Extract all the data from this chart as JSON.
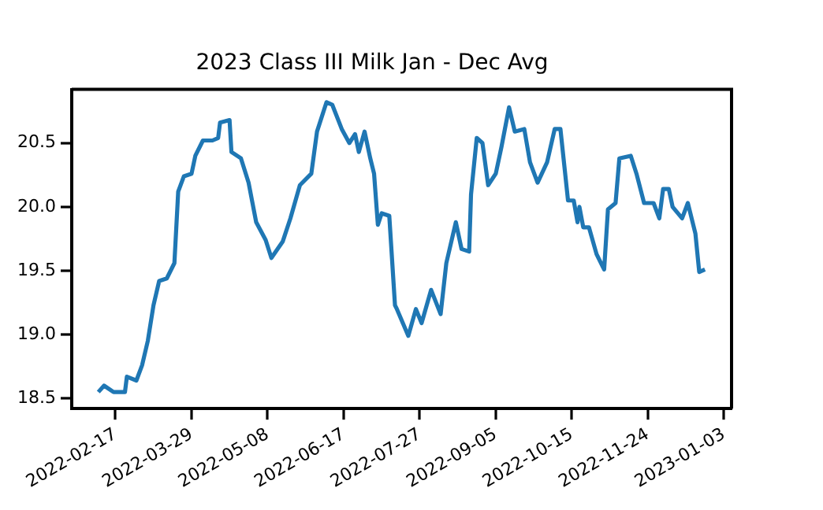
{
  "chart_data": {
    "type": "line",
    "title": "2023 Class III Milk Jan - Dec Avg",
    "x": [
      "2022-02-08",
      "2022-02-11",
      "2022-02-16",
      "2022-02-22",
      "2022-02-23",
      "2022-02-28",
      "2022-03-03",
      "2022-03-06",
      "2022-03-09",
      "2022-03-12",
      "2022-03-16",
      "2022-03-20",
      "2022-03-22",
      "2022-03-25",
      "2022-03-29",
      "2022-03-31",
      "2022-04-04",
      "2022-04-09",
      "2022-04-12",
      "2022-04-13",
      "2022-04-18",
      "2022-04-19",
      "2022-04-24",
      "2022-04-28",
      "2022-05-02",
      "2022-05-07",
      "2022-05-10",
      "2022-05-16",
      "2022-05-20",
      "2022-05-25",
      "2022-05-31",
      "2022-06-03",
      "2022-06-08",
      "2022-06-11",
      "2022-06-16",
      "2022-06-20",
      "2022-06-23",
      "2022-06-25",
      "2022-06-28",
      "2022-07-01",
      "2022-07-03",
      "2022-07-05",
      "2022-07-07",
      "2022-07-11",
      "2022-07-14",
      "2022-07-15",
      "2022-07-21",
      "2022-07-25",
      "2022-07-28",
      "2022-08-02",
      "2022-08-07",
      "2022-08-10",
      "2022-08-15",
      "2022-08-18",
      "2022-08-22",
      "2022-08-23",
      "2022-08-26",
      "2022-08-29",
      "2022-09-01",
      "2022-09-05",
      "2022-09-08",
      "2022-09-12",
      "2022-09-15",
      "2022-09-20",
      "2022-09-23",
      "2022-09-27",
      "2022-10-02",
      "2022-10-06",
      "2022-10-09",
      "2022-10-13",
      "2022-10-16",
      "2022-10-18",
      "2022-10-19",
      "2022-10-21",
      "2022-10-24",
      "2022-10-28",
      "2022-11-01",
      "2022-11-03",
      "2022-11-07",
      "2022-11-09",
      "2022-11-15",
      "2022-11-18",
      "2022-11-22",
      "2022-11-27",
      "2022-11-30",
      "2022-12-02",
      "2022-12-05",
      "2022-12-07",
      "2022-12-12",
      "2022-12-15",
      "2022-12-19",
      "2022-12-21",
      "2022-12-24"
    ],
    "series": [
      {
        "color": "#1f77b4",
        "values": [
          18.55,
          18.6,
          18.55,
          18.55,
          18.67,
          18.64,
          18.76,
          18.95,
          19.23,
          19.42,
          19.44,
          19.56,
          20.12,
          20.24,
          20.26,
          20.4,
          20.52,
          20.52,
          20.54,
          20.66,
          20.68,
          20.43,
          20.38,
          20.19,
          19.88,
          19.74,
          19.6,
          19.73,
          19.91,
          20.17,
          20.26,
          20.59,
          20.82,
          20.8,
          20.61,
          20.5,
          20.57,
          20.43,
          20.59,
          20.38,
          20.26,
          19.86,
          19.95,
          19.93,
          19.23,
          19.2,
          18.99,
          19.2,
          19.09,
          19.35,
          19.16,
          19.56,
          19.88,
          19.67,
          19.65,
          20.1,
          20.54,
          20.5,
          20.17,
          20.26,
          20.47,
          20.78,
          20.59,
          20.61,
          20.35,
          20.19,
          20.35,
          20.61,
          20.61,
          20.05,
          20.05,
          19.88,
          20.0,
          19.84,
          19.84,
          19.63,
          19.51,
          19.98,
          20.03,
          20.38,
          20.4,
          20.26,
          20.03,
          20.03,
          19.91,
          20.14,
          20.14,
          20.0,
          19.91,
          20.03,
          19.79,
          19.49,
          19.51
        ]
      }
    ],
    "xlim": [
      "2022-01-25",
      "2023-01-07"
    ],
    "xticks": [
      "2022-02-17",
      "2022-03-29",
      "2022-05-08",
      "2022-06-17",
      "2022-07-27",
      "2022-09-05",
      "2022-10-15",
      "2022-11-24",
      "2023-01-03"
    ],
    "ylim": [
      18.42,
      20.92
    ],
    "yticks": [
      18.5,
      {
        "value": 19,
        "label": "19.0"
      },
      19.5,
      {
        "value": 20,
        "label": "20.0"
      },
      20.5
    ],
    "grid": false,
    "legend": false,
    "marker": "none",
    "line_style": "solid"
  }
}
